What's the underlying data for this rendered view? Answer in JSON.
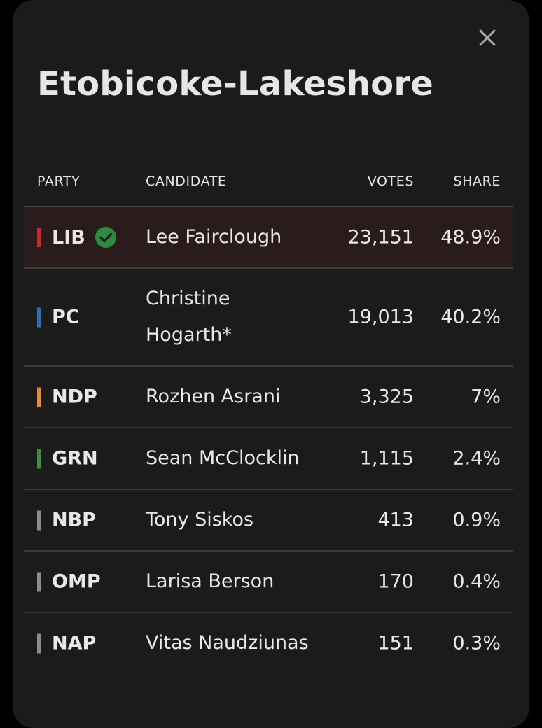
{
  "riding": {
    "title": "Etobicoke-Lakeshore"
  },
  "table": {
    "headers": {
      "party": "PARTY",
      "candidate": "CANDIDATE",
      "votes": "VOTES",
      "share": "SHARE"
    },
    "rows": [
      {
        "party": "LIB",
        "color": "#c4282e",
        "candidate": "Lee Fairclough",
        "votes": "23,151",
        "share": "48.9%",
        "winner": true
      },
      {
        "party": "PC",
        "color": "#2f6fb7",
        "candidate": "Christine Hogarth*",
        "votes": "19,013",
        "share": "40.2%",
        "winner": false
      },
      {
        "party": "NDP",
        "color": "#e88a2e",
        "candidate": "Rozhen Asrani",
        "votes": "3,325",
        "share": "7%",
        "winner": false
      },
      {
        "party": "GRN",
        "color": "#3f8f3f",
        "candidate": "Sean McClocklin",
        "votes": "1,115",
        "share": "2.4%",
        "winner": false
      },
      {
        "party": "NBP",
        "color": "#8a8d90",
        "candidate": "Tony Siskos",
        "votes": "413",
        "share": "0.9%",
        "winner": false
      },
      {
        "party": "OMP",
        "color": "#8a8d90",
        "candidate": "Larisa Berson",
        "votes": "170",
        "share": "0.4%",
        "winner": false
      },
      {
        "party": "NAP",
        "color": "#8a8d90",
        "candidate": "Vitas Naudziunas",
        "votes": "151",
        "share": "0.3%",
        "winner": false
      }
    ]
  },
  "icons": {
    "close": "close-icon",
    "winner": "check-circle-icon"
  },
  "colors": {
    "winner_check": "#2e8b3e"
  }
}
